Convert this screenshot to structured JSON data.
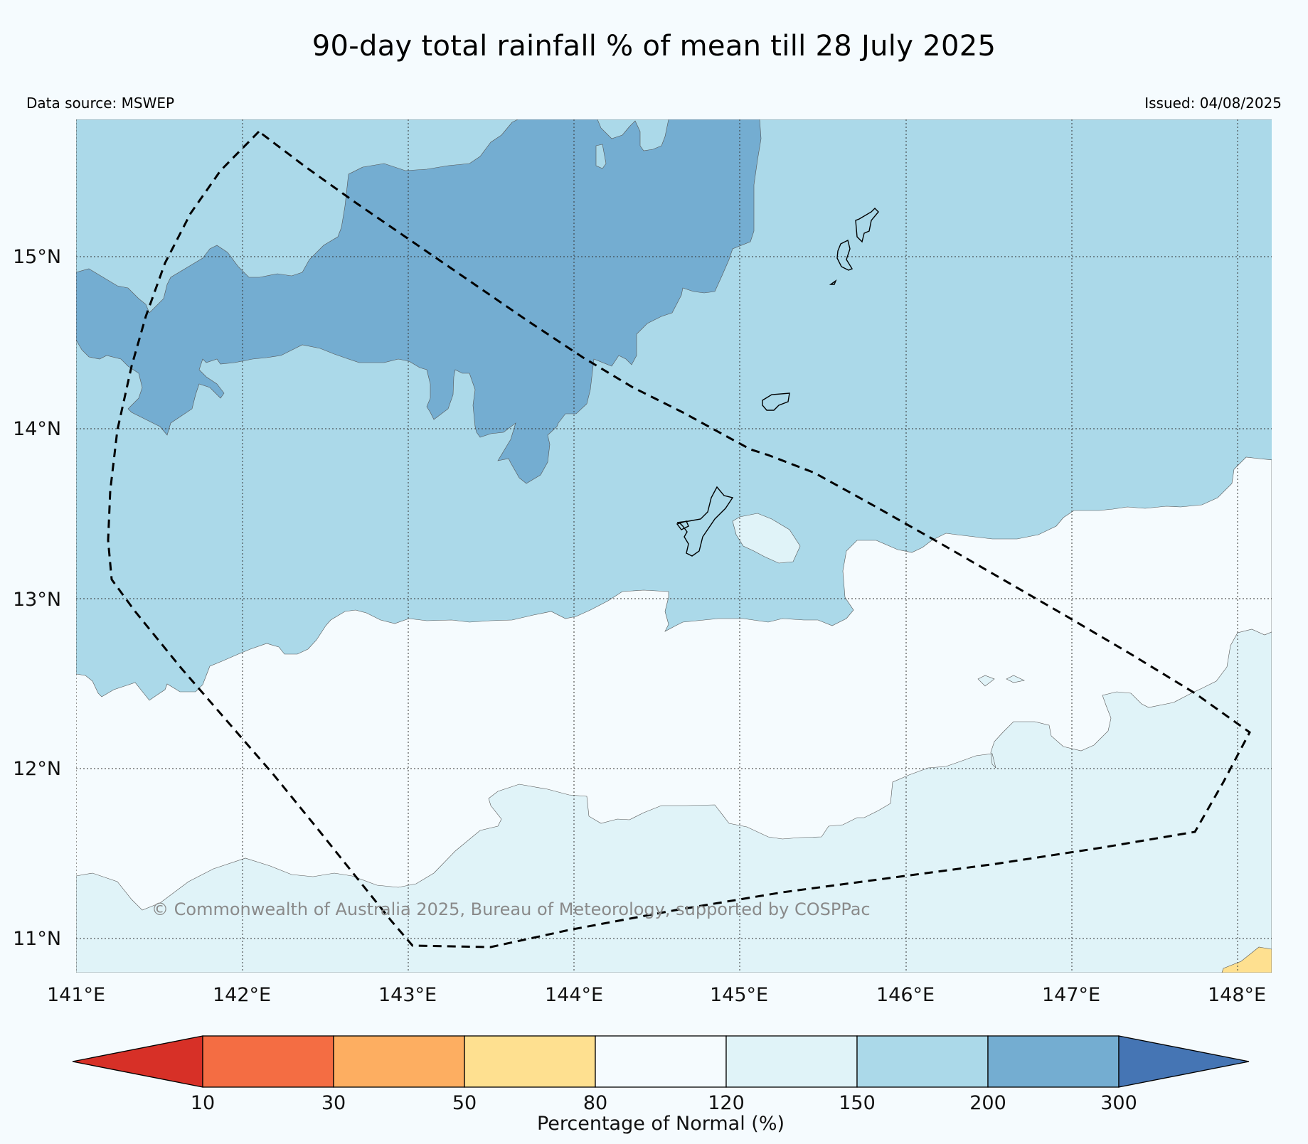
{
  "title": "90-day total rainfall % of mean till 28 July 2025",
  "data_source": "Data source: MSWEP",
  "issued": "Issued: 04/08/2025",
  "copyright": "© Commonwealth of Australia 2025, Bureau of Meteorology, supported by COSPPac",
  "map": {
    "lat_labels": [
      "15°N",
      "14°N",
      "13°N",
      "12°N",
      "11°N"
    ],
    "lon_labels": [
      "141°E",
      "142°E",
      "143°E",
      "144°E",
      "145°E",
      "146°E",
      "147°E",
      "148°E"
    ],
    "colors": {
      "pct_80_120": "#f5fbfe",
      "pct_120_150": "#e0f3f8",
      "pct_150_200": "#abd9e9",
      "pct_200_300": "#74add1",
      "pct_50_80": "#fee090"
    }
  },
  "colorbar": {
    "label": "Percentage of Normal (%)",
    "ticks": [
      "10",
      "30",
      "50",
      "80",
      "120",
      "150",
      "200",
      "300"
    ],
    "colors": [
      "#d73027",
      "#f46d43",
      "#fdae61",
      "#fee090",
      "#f5fbfe",
      "#e0f3f8",
      "#abd9e9",
      "#74add1",
      "#4575b4"
    ]
  }
}
